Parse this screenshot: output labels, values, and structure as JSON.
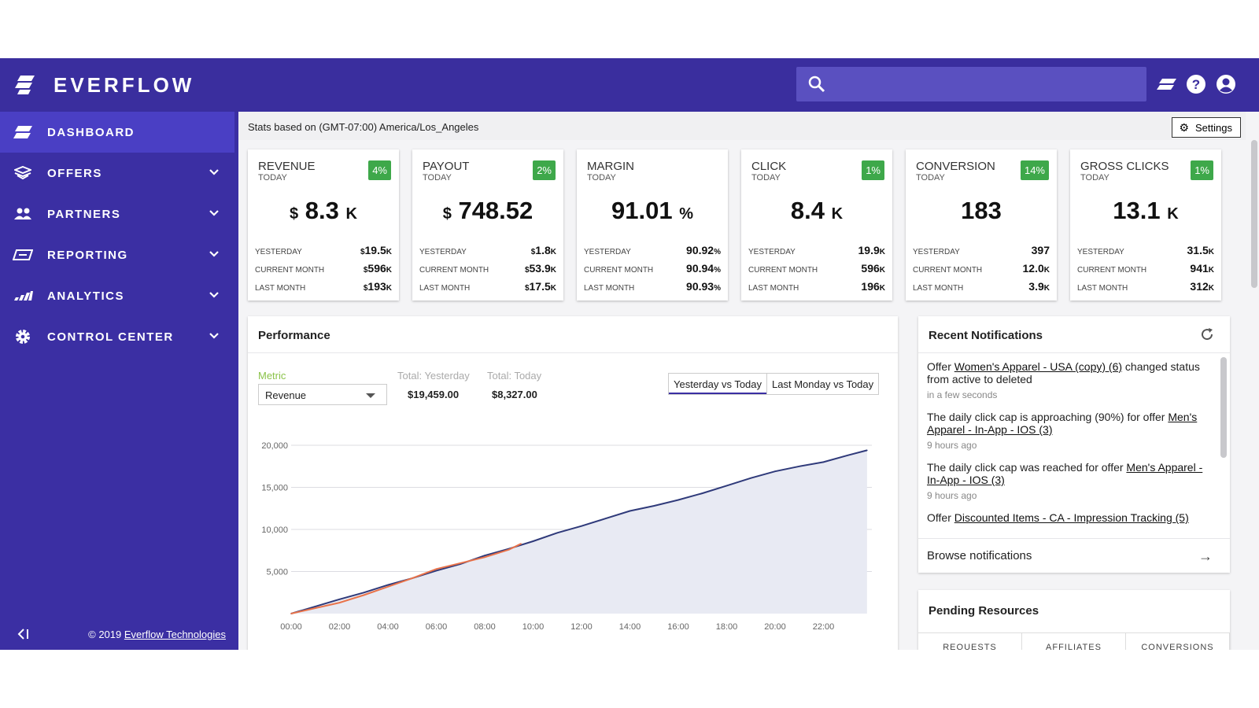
{
  "brand": {
    "name": "EVERFLOW",
    "color": "#3b2fa3"
  },
  "sidebar": {
    "items": [
      {
        "label": "DASHBOARD",
        "icon": "dashboard-icon"
      },
      {
        "label": "OFFERS",
        "icon": "offers-icon"
      },
      {
        "label": "PARTNERS",
        "icon": "partners-icon"
      },
      {
        "label": "REPORTING",
        "icon": "reporting-icon"
      },
      {
        "label": "ANALYTICS",
        "icon": "analytics-icon"
      },
      {
        "label": "CONTROL CENTER",
        "icon": "gear-icon"
      }
    ],
    "copyright": "© 2019",
    "company_link": "Everflow Technologies"
  },
  "statsbar": {
    "text": "Stats based on (GMT-07:00) America/Los_Angeles",
    "settings_label": "Settings"
  },
  "cards": [
    {
      "title": "REVENUE",
      "subtitle": "TODAY",
      "badge": "4%",
      "prefix": "$",
      "value": "8.3",
      "suffix": "K",
      "rows": [
        {
          "label": "YESTERDAY",
          "pre": "$",
          "val": "19.5",
          "suf": "K"
        },
        {
          "label": "CURRENT MONTH",
          "pre": "$",
          "val": "596",
          "suf": "K"
        },
        {
          "label": "LAST MONTH",
          "pre": "$",
          "val": "193",
          "suf": "K"
        }
      ]
    },
    {
      "title": "PAYOUT",
      "subtitle": "TODAY",
      "badge": "2%",
      "prefix": "$",
      "value": "748.52",
      "suffix": "",
      "rows": [
        {
          "label": "YESTERDAY",
          "pre": "$",
          "val": "1.8",
          "suf": "K"
        },
        {
          "label": "CURRENT MONTH",
          "pre": "$",
          "val": "53.9",
          "suf": "K"
        },
        {
          "label": "LAST MONTH",
          "pre": "$",
          "val": "17.5",
          "suf": "K"
        }
      ]
    },
    {
      "title": "MARGIN",
      "subtitle": "TODAY",
      "badge": "",
      "prefix": "",
      "value": "91.01",
      "suffix": "%",
      "rows": [
        {
          "label": "YESTERDAY",
          "pre": "",
          "val": "90.92",
          "suf": "%"
        },
        {
          "label": "CURRENT MONTH",
          "pre": "",
          "val": "90.94",
          "suf": "%"
        },
        {
          "label": "LAST MONTH",
          "pre": "",
          "val": "90.93",
          "suf": "%"
        }
      ]
    },
    {
      "title": "CLICK",
      "subtitle": "TODAY",
      "badge": "1%",
      "prefix": "",
      "value": "8.4",
      "suffix": "K",
      "rows": [
        {
          "label": "YESTERDAY",
          "pre": "",
          "val": "19.9",
          "suf": "K"
        },
        {
          "label": "CURRENT MONTH",
          "pre": "",
          "val": "596",
          "suf": "K"
        },
        {
          "label": "LAST MONTH",
          "pre": "",
          "val": "196",
          "suf": "K"
        }
      ]
    },
    {
      "title": "CONVERSION",
      "subtitle": "TODAY",
      "badge": "14%",
      "prefix": "",
      "value": "183",
      "suffix": "",
      "rows": [
        {
          "label": "YESTERDAY",
          "pre": "",
          "val": "397",
          "suf": ""
        },
        {
          "label": "CURRENT MONTH",
          "pre": "",
          "val": "12.0",
          "suf": "K"
        },
        {
          "label": "LAST MONTH",
          "pre": "",
          "val": "3.9",
          "suf": "K"
        }
      ]
    },
    {
      "title": "GROSS CLICKS",
      "subtitle": "TODAY",
      "badge": "1%",
      "prefix": "",
      "value": "13.1",
      "suffix": "K",
      "rows": [
        {
          "label": "YESTERDAY",
          "pre": "",
          "val": "31.5",
          "suf": "K"
        },
        {
          "label": "CURRENT MONTH",
          "pre": "",
          "val": "941",
          "suf": "K"
        },
        {
          "label": "LAST MONTH",
          "pre": "",
          "val": "312",
          "suf": "K"
        }
      ]
    }
  ],
  "performance": {
    "title": "Performance",
    "metric_label": "Metric",
    "metric_value": "Revenue",
    "total_yesterday_label": "Total: Yesterday",
    "total_yesterday": "$19,459.00",
    "total_today_label": "Total: Today",
    "total_today": "$8,327.00",
    "compare_buttons": [
      "Yesterday vs Today",
      "Last Monday vs Today"
    ]
  },
  "chart_data": {
    "type": "area",
    "x_ticks": [
      "00:00",
      "02:00",
      "04:00",
      "06:00",
      "08:00",
      "10:00",
      "12:00",
      "14:00",
      "16:00",
      "18:00",
      "20:00",
      "22:00"
    ],
    "y_ticks": [
      "5,000",
      "10,000",
      "15,000",
      "20,000"
    ],
    "ylim": [
      0,
      20000
    ],
    "xlim": [
      0,
      24
    ],
    "grid": true,
    "series": [
      {
        "color": "#2f3a7a",
        "fill": "#e8eaf3",
        "x": [
          0,
          1,
          2,
          3,
          4,
          5,
          6,
          7,
          8,
          9,
          10,
          11,
          12,
          13,
          14,
          15,
          16,
          17,
          18,
          19,
          20,
          21,
          22,
          23,
          23.8
        ],
        "y": [
          0,
          850,
          1700,
          2500,
          3400,
          4200,
          5100,
          5900,
          6900,
          7700,
          8600,
          9600,
          10400,
          11300,
          12200,
          12800,
          13500,
          14300,
          15200,
          16100,
          16900,
          17500,
          18000,
          18800,
          19400
        ]
      },
      {
        "color": "#e9734a",
        "x": [
          0,
          1,
          2,
          3,
          4,
          5,
          6,
          7,
          8,
          9,
          9.5
        ],
        "y": [
          0,
          650,
          1300,
          2200,
          3200,
          4200,
          5300,
          6000,
          6700,
          7600,
          8300
        ]
      }
    ]
  },
  "notifications": {
    "title": "Recent Notifications",
    "items": [
      {
        "pre": "Offer ",
        "link": "Women's Apparel - USA (copy) (6)",
        "post": " changed status from active to deleted",
        "time": "in a few seconds"
      },
      {
        "pre": "The daily click cap is approaching (90%) for offer ",
        "link": "Men's Apparel - In-App - IOS (3)",
        "post": "",
        "time": "9 hours ago"
      },
      {
        "pre": "The daily click cap was reached for offer ",
        "link": "Men's Apparel - In-App - IOS (3)",
        "post": "",
        "time": "9 hours ago"
      },
      {
        "pre": "Offer ",
        "link": "Discounted Items - CA - Impression Tracking (5)",
        "post": "",
        "time": ""
      }
    ],
    "browse_label": "Browse notifications"
  },
  "pending": {
    "title": "Pending Resources",
    "tabs": [
      "REQUESTS",
      "AFFILIATES",
      "CONVERSIONS"
    ]
  }
}
